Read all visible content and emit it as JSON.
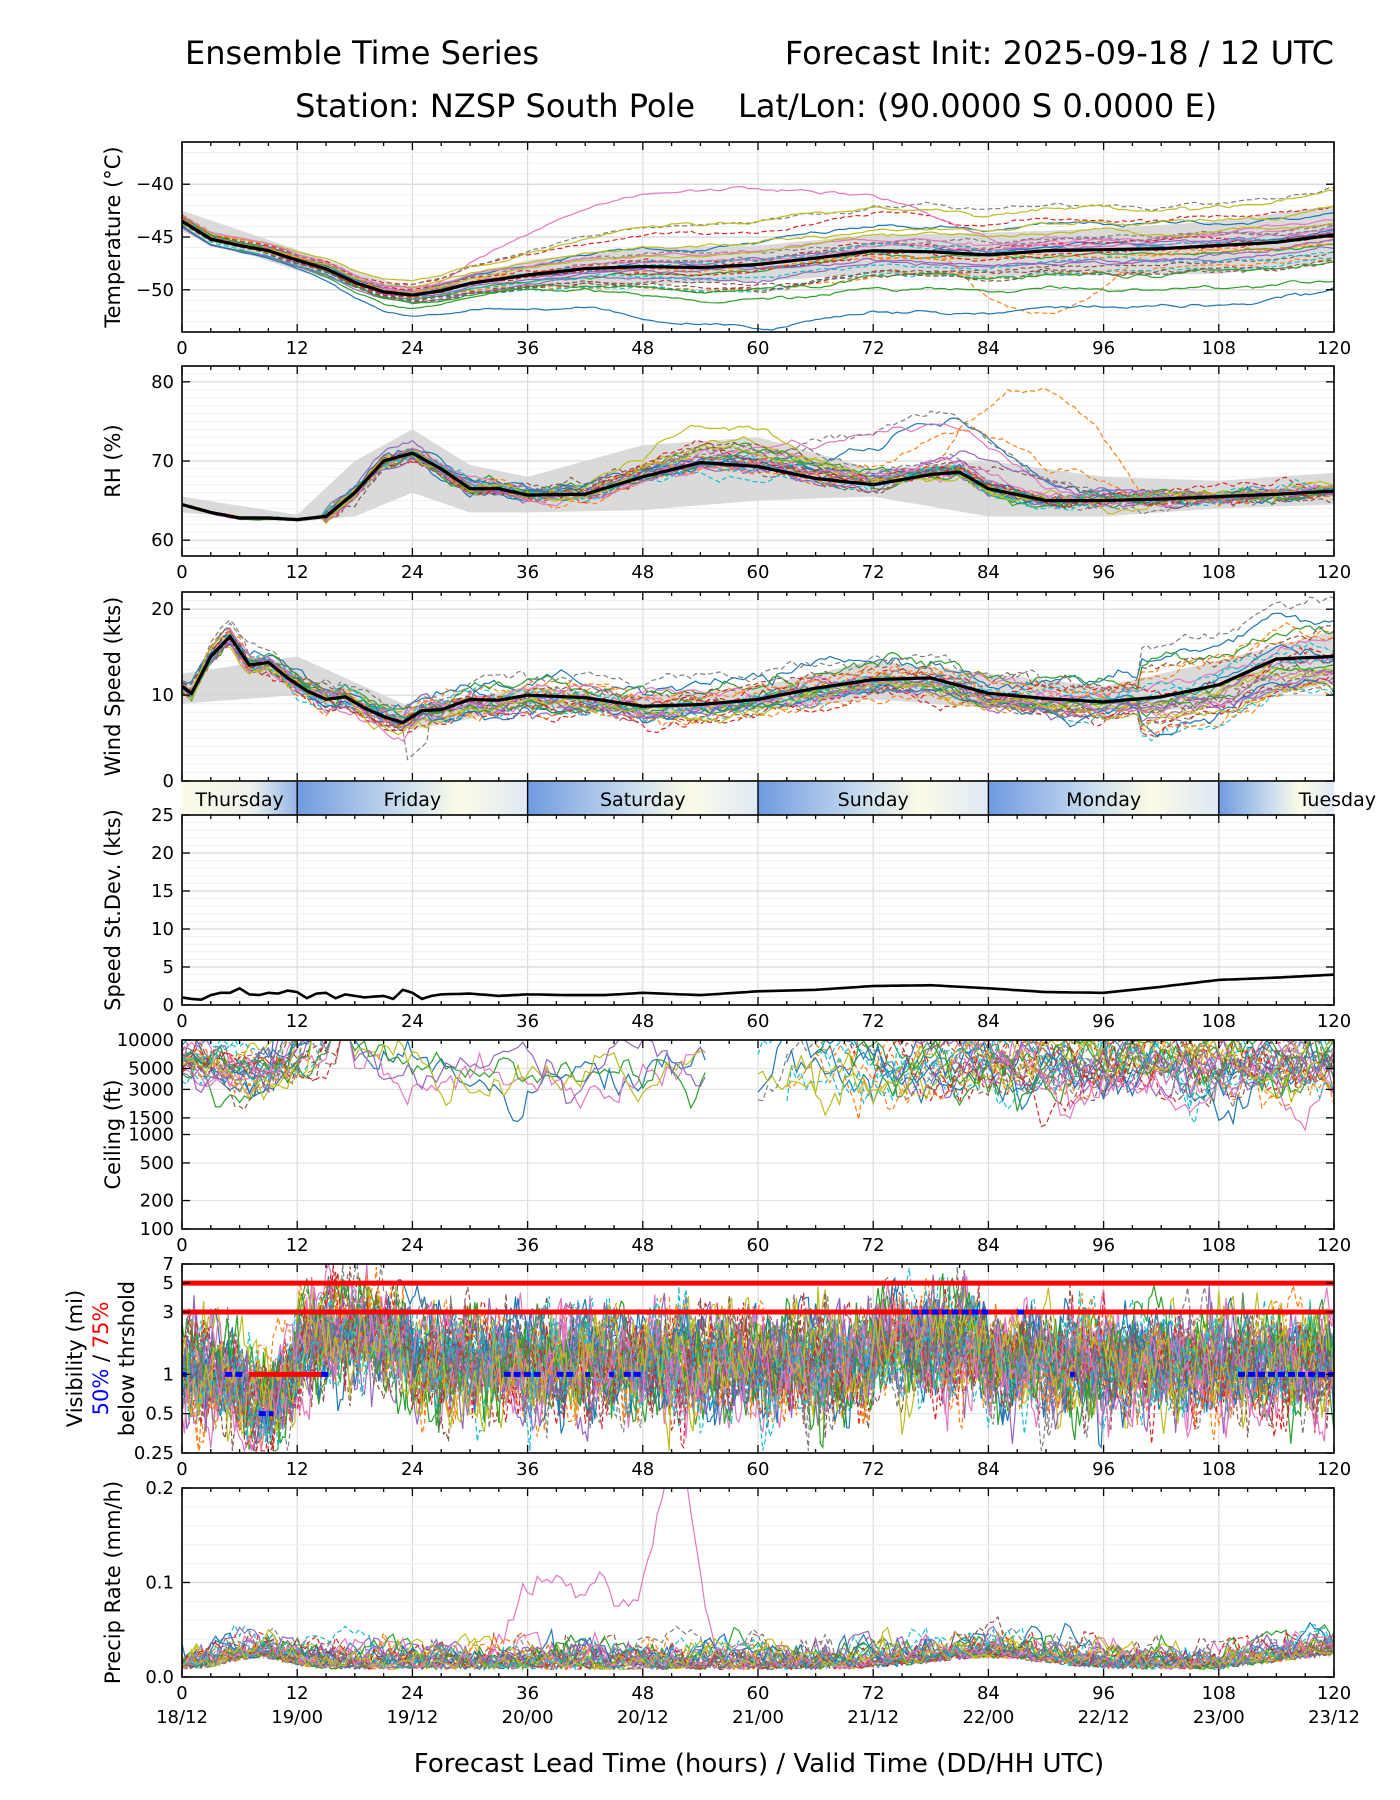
{
  "header": {
    "title_left": "Ensemble Time Series",
    "title_right": "Forecast Init: 2025-09-18 / 12 UTC",
    "station": "Station: NZSP South Pole",
    "latlon": "Lat/Lon: (90.0000 S 0.0000 E)"
  },
  "xaxis": {
    "label": "Forecast Lead Time (hours) / Valid Time (DD/HH UTC)",
    "ticks": [
      0,
      12,
      24,
      36,
      48,
      60,
      72,
      84,
      96,
      108,
      120
    ],
    "tick_labels": [
      "0",
      "12",
      "24",
      "36",
      "48",
      "60",
      "72",
      "84",
      "96",
      "108",
      "120"
    ],
    "valid_labels": [
      "18/12",
      "19/00",
      "19/12",
      "20/00",
      "20/12",
      "21/00",
      "21/12",
      "22/00",
      "22/12",
      "23/00",
      "23/12"
    ],
    "range": [
      0,
      120
    ]
  },
  "day_strip": {
    "days": [
      {
        "label": "Thursday",
        "start": 0,
        "end": 12
      },
      {
        "label": "Friday",
        "start": 12,
        "end": 36
      },
      {
        "label": "Saturday",
        "start": 36,
        "end": 60
      },
      {
        "label": "Sunday",
        "start": 60,
        "end": 84
      },
      {
        "label": "Monday",
        "start": 84,
        "end": 108
      },
      {
        "label": "Tuesday",
        "start": 108,
        "end": 120
      }
    ]
  },
  "visibility_legend": {
    "line1_blue": "50%",
    "line1_sep": " / ",
    "line1_red": "75%",
    "line2": "below thrshold",
    "label": "Visibility (mi)"
  },
  "chart_data": [
    {
      "type": "line",
      "panel": "temperature",
      "ylabel": "Temperature (°C)",
      "ylim": [
        -54,
        -36
      ],
      "yticks": [
        -50,
        -45,
        -40
      ],
      "ytick_labels": [
        "−50",
        "−45",
        "−40"
      ],
      "mean": {
        "x": [
          0,
          3,
          6,
          9,
          12,
          15,
          18,
          21,
          24,
          27,
          30,
          36,
          42,
          48,
          54,
          60,
          66,
          72,
          78,
          84,
          90,
          96,
          102,
          108,
          114,
          120
        ],
        "y": [
          -43.5,
          -45.2,
          -45.8,
          -46.3,
          -47.2,
          -48.0,
          -49.3,
          -50.2,
          -50.5,
          -50.1,
          -49.4,
          -48.6,
          -48.0,
          -47.8,
          -47.9,
          -47.6,
          -47.0,
          -46.3,
          -46.4,
          -46.7,
          -46.3,
          -46.2,
          -46.1,
          -45.8,
          -45.5,
          -44.8
        ]
      },
      "spread": {
        "x": [
          0,
          12,
          24,
          36,
          48,
          60,
          72,
          84,
          96,
          108,
          120
        ],
        "lower": [
          -44.5,
          -48.2,
          -51.0,
          -49.8,
          -49.5,
          -49.2,
          -48.5,
          -48.8,
          -48.6,
          -48.5,
          -47.3
        ],
        "upper": [
          -42.5,
          -46.2,
          -50.0,
          -47.2,
          -46.0,
          -45.8,
          -44.8,
          -44.6,
          -44.2,
          -43.5,
          -42.0
        ]
      },
      "members": 30
    },
    {
      "type": "line",
      "panel": "rh",
      "ylabel": "RH (%)",
      "ylim": [
        58,
        82
      ],
      "yticks": [
        60,
        70,
        80
      ],
      "ytick_labels": [
        "60",
        "70",
        "80"
      ],
      "mean": {
        "x": [
          0,
          3,
          6,
          9,
          12,
          15,
          18,
          21,
          24,
          27,
          30,
          33,
          36,
          42,
          48,
          54,
          60,
          66,
          72,
          78,
          81,
          84,
          90,
          96,
          102,
          108,
          114,
          120
        ],
        "y": [
          64.5,
          63.5,
          62.8,
          62.8,
          62.6,
          63.0,
          66.0,
          70.0,
          71.0,
          69.0,
          66.5,
          66.5,
          65.7,
          65.8,
          68.0,
          69.8,
          69.3,
          67.8,
          67.0,
          68.3,
          68.6,
          66.5,
          65.0,
          65.0,
          65.2,
          65.5,
          65.8,
          66.2
        ]
      },
      "spread": {
        "x": [
          0,
          12,
          18,
          24,
          30,
          36,
          48,
          60,
          72,
          84,
          96,
          108,
          120
        ],
        "lower": [
          63.5,
          62.3,
          63.0,
          66.0,
          63.5,
          63.5,
          63.8,
          65.0,
          65.5,
          63.0,
          63.0,
          64.0,
          64.5
        ],
        "upper": [
          65.5,
          63.2,
          70.0,
          74.0,
          69.5,
          68.0,
          72.0,
          73.0,
          69.0,
          70.0,
          68.0,
          67.5,
          68.5
        ]
      },
      "members": 30
    },
    {
      "type": "line",
      "panel": "wind",
      "ylabel": "Wind Speed (kts)",
      "ylim": [
        0,
        22
      ],
      "yticks": [
        0,
        10,
        20
      ],
      "ytick_labels": [
        "0",
        "10",
        "20"
      ],
      "mean": {
        "x": [
          0,
          1,
          3,
          5,
          7,
          9,
          11,
          13,
          15,
          17,
          19,
          21,
          23,
          25,
          27,
          30,
          33,
          36,
          42,
          48,
          54,
          60,
          66,
          72,
          78,
          84,
          90,
          96,
          102,
          108,
          114,
          120
        ],
        "y": [
          11.0,
          10.2,
          14.5,
          16.8,
          13.5,
          13.8,
          12.0,
          10.5,
          9.5,
          9.8,
          8.5,
          7.5,
          6.8,
          8.2,
          8.3,
          9.5,
          9.4,
          10.0,
          9.7,
          8.7,
          8.9,
          9.5,
          10.8,
          11.8,
          12.0,
          10.2,
          9.6,
          9.2,
          9.8,
          11.2,
          14.2,
          14.5
        ]
      },
      "spread": {
        "x": [
          0,
          12,
          24,
          36,
          48,
          60,
          72,
          84,
          96,
          108,
          120
        ],
        "lower": [
          9.0,
          10.0,
          6.0,
          8.5,
          7.8,
          8.2,
          9.5,
          8.5,
          8.0,
          8.5,
          11.5
        ],
        "upper": [
          12.5,
          14.5,
          8.5,
          11.0,
          9.8,
          11.0,
          14.0,
          12.5,
          11.0,
          14.0,
          17.5
        ]
      },
      "members": 30
    },
    {
      "type": "line",
      "panel": "speed_stdev",
      "ylabel": "Speed St.Dev. (kts)",
      "ylim": [
        0,
        25
      ],
      "yticks": [
        0,
        5,
        10,
        15,
        20,
        25
      ],
      "ytick_labels": [
        "0",
        "5",
        "10",
        "15",
        "20",
        "25"
      ],
      "series": [
        {
          "name": "stdev",
          "x": [
            0,
            1,
            2,
            3,
            4,
            5,
            6,
            7,
            8,
            9,
            10,
            11,
            12,
            13,
            14,
            15,
            16,
            17,
            18,
            19,
            20,
            21,
            22,
            23,
            24,
            25,
            26,
            27,
            30,
            33,
            36,
            40,
            44,
            48,
            54,
            60,
            66,
            72,
            78,
            84,
            90,
            96,
            102,
            108,
            114,
            120
          ],
          "y": [
            1.0,
            0.8,
            0.7,
            1.3,
            1.6,
            1.6,
            2.2,
            1.4,
            1.3,
            1.6,
            1.5,
            1.9,
            1.7,
            0.9,
            1.5,
            1.6,
            0.9,
            1.4,
            1.2,
            1.0,
            1.1,
            1.2,
            0.8,
            2.0,
            1.6,
            0.8,
            1.2,
            1.4,
            1.5,
            1.2,
            1.4,
            1.3,
            1.3,
            1.6,
            1.3,
            1.8,
            2.0,
            2.5,
            2.6,
            2.2,
            1.7,
            1.6,
            2.4,
            3.3,
            3.6,
            4.0
          ]
        }
      ]
    },
    {
      "type": "line",
      "panel": "ceiling",
      "ylabel": "Ceiling (ft)",
      "yscale": "log",
      "ylim": [
        100,
        10000
      ],
      "yticks": [
        100,
        200,
        500,
        1000,
        1500,
        3000,
        5000,
        10000
      ],
      "ytick_labels": [
        "100",
        "200",
        "500",
        "1000",
        "1500",
        "3000",
        "5000",
        "10000"
      ],
      "members": 30
    },
    {
      "type": "line",
      "panel": "visibility",
      "yscale": "log",
      "ylim": [
        0.25,
        7
      ],
      "yticks": [
        0.25,
        0.5,
        1,
        3,
        5,
        7
      ],
      "ytick_labels": [
        "0.25",
        "0.5",
        "1",
        "3",
        "5",
        "7"
      ],
      "thresholds_red": [
        5,
        3
      ],
      "members": 40,
      "red_segments": [
        {
          "y": 1,
          "x0": 7,
          "x1": 15
        }
      ],
      "blue_segments": [
        {
          "y": 1,
          "x0": 0,
          "x1": 0.5
        },
        {
          "y": 1,
          "x0": 4.5,
          "x1": 6.5
        },
        {
          "y": 1,
          "x0": 14.5,
          "x1": 15.5
        },
        {
          "y": 0.5,
          "x0": 8,
          "x1": 9.5
        },
        {
          "y": 1,
          "x0": 33.5,
          "x1": 37.5
        },
        {
          "y": 1,
          "x0": 39,
          "x1": 41
        },
        {
          "y": 1,
          "x0": 42,
          "x1": 42.5
        },
        {
          "y": 1,
          "x0": 44.5,
          "x1": 45
        },
        {
          "y": 1,
          "x0": 46,
          "x1": 48
        },
        {
          "y": 3,
          "x0": 76,
          "x1": 84
        },
        {
          "y": 3,
          "x0": 87,
          "x1": 88
        },
        {
          "y": 1,
          "x0": 92.5,
          "x1": 93
        },
        {
          "y": 1,
          "x0": 110,
          "x1": 120
        }
      ]
    },
    {
      "type": "line",
      "panel": "precip",
      "ylabel": "Precip Rate (mm/h)",
      "ylim": [
        0,
        0.2
      ],
      "yticks": [
        0.0,
        0.1,
        0.2
      ],
      "ytick_labels": [
        "0.0",
        "0.1",
        "0.2"
      ],
      "members": 30
    }
  ],
  "colors": {
    "tab": [
      "#1f77b4",
      "#ff7f0e",
      "#2ca02c",
      "#d62728",
      "#9467bd",
      "#8c564b",
      "#e377c2",
      "#7f7f7f",
      "#bcbd22",
      "#17becf"
    ],
    "mean": "#000000",
    "spread": "#d3d3d3",
    "threshold_red": "#ff0000",
    "fifty_blue": "#0000ff",
    "day_blue": "#6f9ae0",
    "day_cream": "#fbfbe6"
  }
}
